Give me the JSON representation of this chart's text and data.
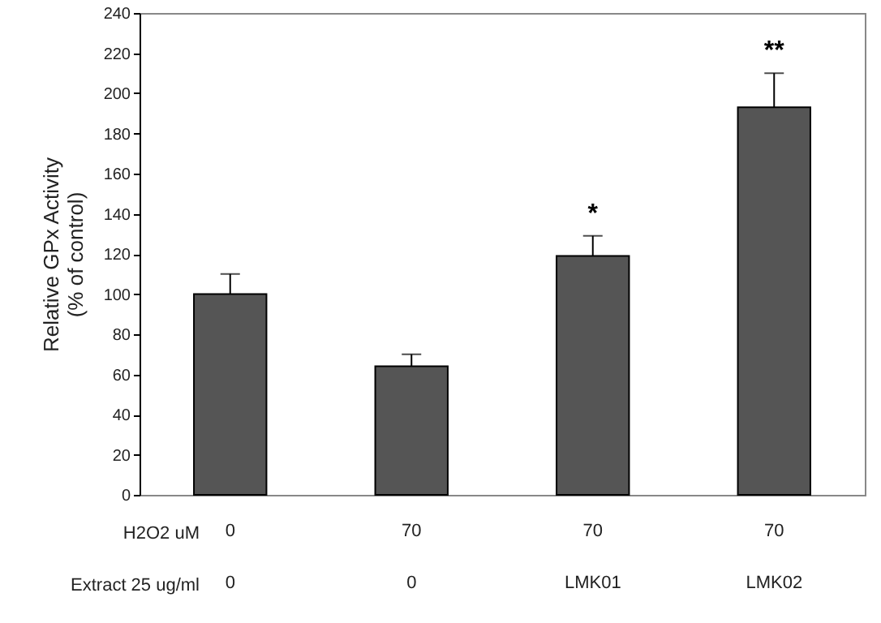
{
  "chart_data": {
    "type": "bar",
    "ylabel": "Relative GPx Activity\n(% of control)",
    "categories": [
      "0\n0",
      "70\n0",
      "70\nLMK01",
      "70\nLMK02"
    ],
    "values": [
      100,
      64,
      119,
      193
    ],
    "errors": [
      [
        100,
        110
      ],
      [
        64,
        70
      ],
      [
        119,
        129
      ],
      [
        193,
        210
      ]
    ],
    "color": "#555555",
    "ylim": [
      0,
      240
    ],
    "yticks": [
      0,
      20,
      40,
      60,
      80,
      100,
      120,
      140,
      160,
      180,
      200,
      220,
      240
    ],
    "grid": false,
    "annotations": [
      {
        "text": "*",
        "x": "70\nLMK01",
        "y": 129
      },
      {
        "text": "**",
        "x": "70\nLMK02",
        "y": 210
      },
      "H2O2 uM",
      "Extract 25 ug/ml"
    ]
  }
}
